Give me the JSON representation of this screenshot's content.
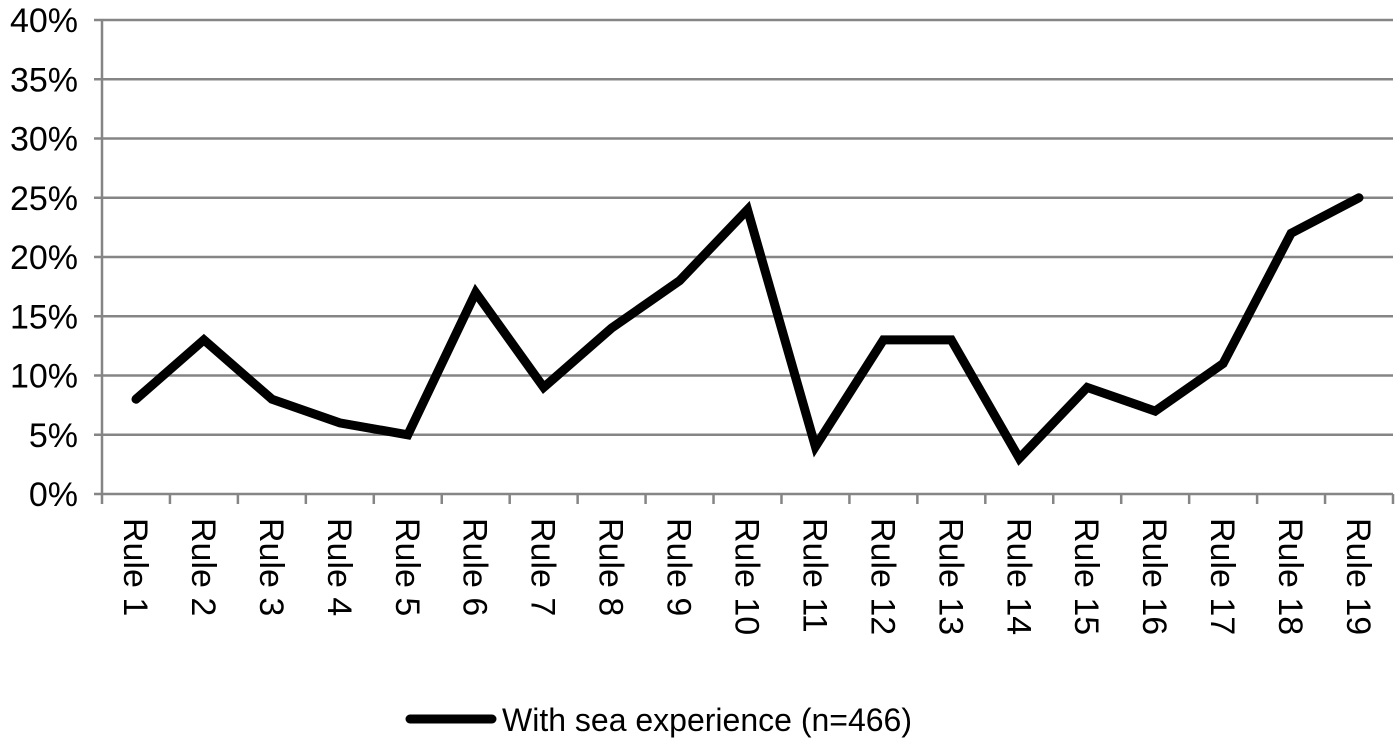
{
  "chart_data": {
    "type": "line",
    "title": "",
    "xlabel": "",
    "ylabel": "",
    "categories": [
      "Rule 1",
      "Rule 2",
      "Rule 3",
      "Rule 4",
      "Rule 5",
      "Rule 6",
      "Rule 7",
      "Rule 8",
      "Rule 9",
      "Rule 10",
      "Rule 11",
      "Rule 12",
      "Rule 13",
      "Rule 14",
      "Rule 15",
      "Rule 16",
      "Rule 17",
      "Rule 18",
      "Rule 19"
    ],
    "ylim": [
      0,
      40
    ],
    "yticks": [
      0,
      5,
      10,
      15,
      20,
      25,
      30,
      35,
      40
    ],
    "ytick_labels": [
      "0%",
      "5%",
      "10%",
      "15%",
      "20%",
      "25%",
      "30%",
      "35%",
      "40%"
    ],
    "series": [
      {
        "name": "With sea experience (n=466)",
        "color": "#000000",
        "values": [
          8,
          13,
          8,
          6,
          5,
          17,
          9,
          14,
          18,
          24,
          4,
          13,
          13,
          3,
          9,
          7,
          11,
          22,
          25
        ]
      }
    ],
    "grid": true,
    "legend_position": "bottom"
  }
}
